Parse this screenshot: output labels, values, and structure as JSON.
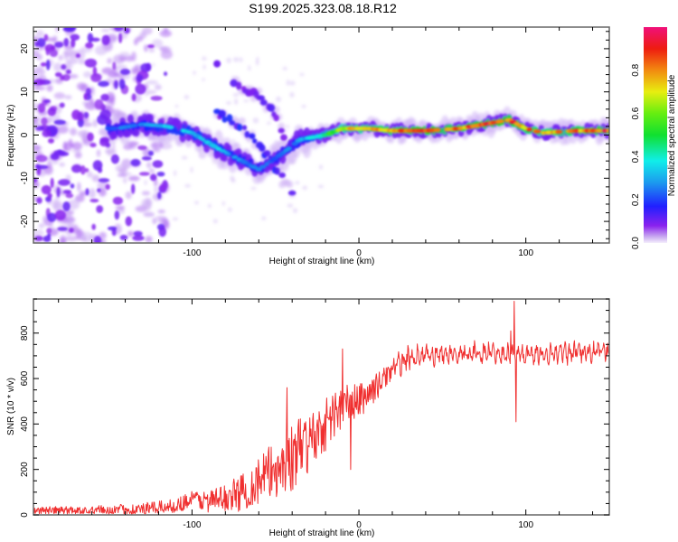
{
  "title": "S199.2025.323.08.18.R12",
  "chart_data": [
    {
      "type": "heatmap",
      "name": "spectrogram",
      "title": "S199.2025.323.08.18.R12",
      "xlabel": "Height of straight line (km)",
      "ylabel": "Frequency (Hz)",
      "xlim": [
        -195,
        150
      ],
      "ylim": [
        -25,
        25
      ],
      "xticks": [
        -100,
        0,
        100
      ],
      "xtick_labels": [
        "-100",
        "0",
        "100"
      ],
      "yticks": [
        -20,
        -10,
        0,
        10,
        20
      ],
      "ytick_labels": [
        "-20",
        "-10",
        "0",
        "10",
        "20"
      ],
      "grid": false,
      "colorbar": {
        "label": "Normalized spectral amplitude",
        "range": [
          0,
          1
        ],
        "ticks": [
          0.0,
          0.2,
          0.4,
          0.6,
          0.8
        ],
        "tick_labels": [
          "0.0",
          "0.2",
          "0.4",
          "0.6",
          "0.8"
        ],
        "colormap": "rainbow (white-violet-blue-cyan-green-yellow-red-pink)"
      },
      "features": {
        "noise_region_km": [
          -195,
          -140
        ],
        "main_band": [
          {
            "x": -145,
            "freq": 1.5,
            "amp": 0.25
          },
          {
            "x": -130,
            "freq": 2.5,
            "amp": 0.3
          },
          {
            "x": -115,
            "freq": 2.0,
            "amp": 0.35
          },
          {
            "x": -100,
            "freq": 0.5,
            "amp": 0.35
          },
          {
            "x": -85,
            "freq": -3.0,
            "amp": 0.35
          },
          {
            "x": -70,
            "freq": -6.0,
            "amp": 0.3
          },
          {
            "x": -60,
            "freq": -8.0,
            "amp": 0.25
          },
          {
            "x": -45,
            "freq": -4.0,
            "amp": 0.25
          },
          {
            "x": -35,
            "freq": -1.0,
            "amp": 0.3
          },
          {
            "x": -20,
            "freq": 0.0,
            "amp": 0.5
          },
          {
            "x": -10,
            "freq": 1.5,
            "amp": 0.75
          },
          {
            "x": 5,
            "freq": 1.5,
            "amp": 0.8
          },
          {
            "x": 20,
            "freq": 1.0,
            "amp": 0.85
          },
          {
            "x": 40,
            "freq": 1.0,
            "amp": 0.95
          },
          {
            "x": 60,
            "freq": 1.5,
            "amp": 0.85
          },
          {
            "x": 75,
            "freq": 2.5,
            "amp": 0.95
          },
          {
            "x": 90,
            "freq": 3.5,
            "amp": 0.9
          },
          {
            "x": 100,
            "freq": 1.5,
            "amp": 0.85
          },
          {
            "x": 110,
            "freq": 0.5,
            "amp": 0.8
          },
          {
            "x": 130,
            "freq": 1.0,
            "amp": 0.85
          },
          {
            "x": 150,
            "freq": 1.0,
            "amp": 0.95
          }
        ],
        "secondary_branch": [
          {
            "x": -85,
            "freq": 5.0
          },
          {
            "x": -70,
            "freq": 2.0
          },
          {
            "x": -60,
            "freq": -2.0
          },
          {
            "x": -50,
            "freq": -8.0
          },
          {
            "x": -40,
            "freq": -13.0
          }
        ],
        "upper_branch": [
          {
            "x": -75,
            "freq": 12.0
          },
          {
            "x": -60,
            "freq": 9.0
          },
          {
            "x": -50,
            "freq": 5.0
          },
          {
            "x": -45,
            "freq": 0.0
          }
        ],
        "isolated_blob": {
          "x": -85,
          "freq": 16.5
        }
      }
    },
    {
      "type": "line",
      "name": "snr",
      "xlabel": "Height of straight line (km)",
      "ylabel": "SNR (10 * v/v)",
      "xlim": [
        -195,
        150
      ],
      "ylim": [
        0,
        950
      ],
      "xticks": [
        -100,
        0,
        100
      ],
      "xtick_labels": [
        "-100",
        "0",
        "100"
      ],
      "yticks": [
        0,
        200,
        400,
        600,
        800
      ],
      "ytick_labels": [
        "0",
        "200",
        "400",
        "600",
        "800"
      ],
      "grid": false,
      "series": [
        {
          "name": "SNR",
          "color": "#f03030",
          "trend": {
            "x": [
              -195,
              -150,
              -130,
              -110,
              -100,
              -90,
              -80,
              -70,
              -60,
              -50,
              -40,
              -30,
              -20,
              -10,
              0,
              10,
              20,
              30,
              40,
              60,
              80,
              100,
              120,
              150
            ],
            "y": [
              20,
              20,
              25,
              40,
              70,
              60,
              75,
              100,
              150,
              200,
              250,
              320,
              400,
              480,
              500,
              560,
              640,
              690,
              700,
              710,
              715,
              705,
              710,
              720
            ]
          },
          "noise_amplitude": {
            "x": [
              -195,
              -110,
              -80,
              -60,
              -40,
              -20,
              0,
              20,
              40,
              150
            ],
            "y": [
              15,
              30,
              60,
              110,
              150,
              120,
              80,
              40,
              30,
              30
            ]
          },
          "spikes": [
            {
              "x": -10,
              "y": 730
            },
            {
              "x": -5,
              "y": 200
            },
            {
              "x": -32,
              "y": 410
            },
            {
              "x": -43,
              "y": 560
            },
            {
              "x": 93,
              "y": 940
            },
            {
              "x": 94,
              "y": 410
            },
            {
              "x": 91,
              "y": 810
            }
          ]
        }
      ]
    }
  ]
}
